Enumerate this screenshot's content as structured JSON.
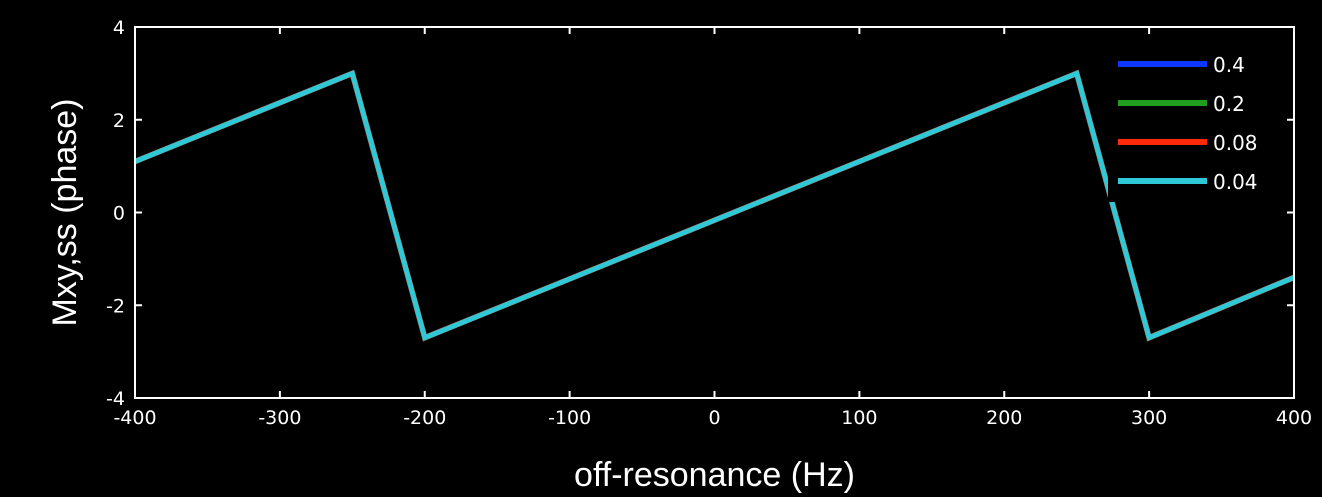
{
  "chart_data": {
    "type": "line",
    "title": "",
    "xlabel": "off-resonance (Hz)",
    "ylabel": "Mxy,ss (phase)",
    "xlim": [
      -400,
      400
    ],
    "ylim": [
      -4,
      4
    ],
    "xticks": [
      -400,
      -300,
      -200,
      -100,
      0,
      100,
      200,
      300,
      400
    ],
    "yticks": [
      -4,
      -2,
      0,
      2,
      4
    ],
    "grid": false,
    "legend_position": "top-right",
    "background": "#000000",
    "axis_color": "#ffffff",
    "series": [
      {
        "name": "0.4",
        "color": "#0a36ff",
        "x": [
          -400,
          -250,
          -200,
          250,
          300,
          400
        ],
        "y": [
          1.1,
          3.0,
          -2.7,
          3.0,
          -2.7,
          -1.4
        ]
      },
      {
        "name": "0.2",
        "color": "#1f9e1f",
        "x": [
          -400,
          -250,
          -200,
          250,
          300,
          400
        ],
        "y": [
          1.1,
          3.0,
          -2.7,
          3.0,
          -2.7,
          -1.4
        ]
      },
      {
        "name": "0.08",
        "color": "#ff2a0a",
        "x": [
          -400,
          -250,
          -200,
          250,
          300,
          400
        ],
        "y": [
          1.1,
          3.0,
          -2.7,
          3.0,
          -2.7,
          -1.4
        ]
      },
      {
        "name": "0.04",
        "color": "#2ec8d6",
        "x": [
          -400,
          -250,
          -200,
          250,
          300,
          400
        ],
        "y": [
          1.1,
          3.0,
          -2.7,
          3.0,
          -2.7,
          -1.4
        ]
      }
    ]
  }
}
